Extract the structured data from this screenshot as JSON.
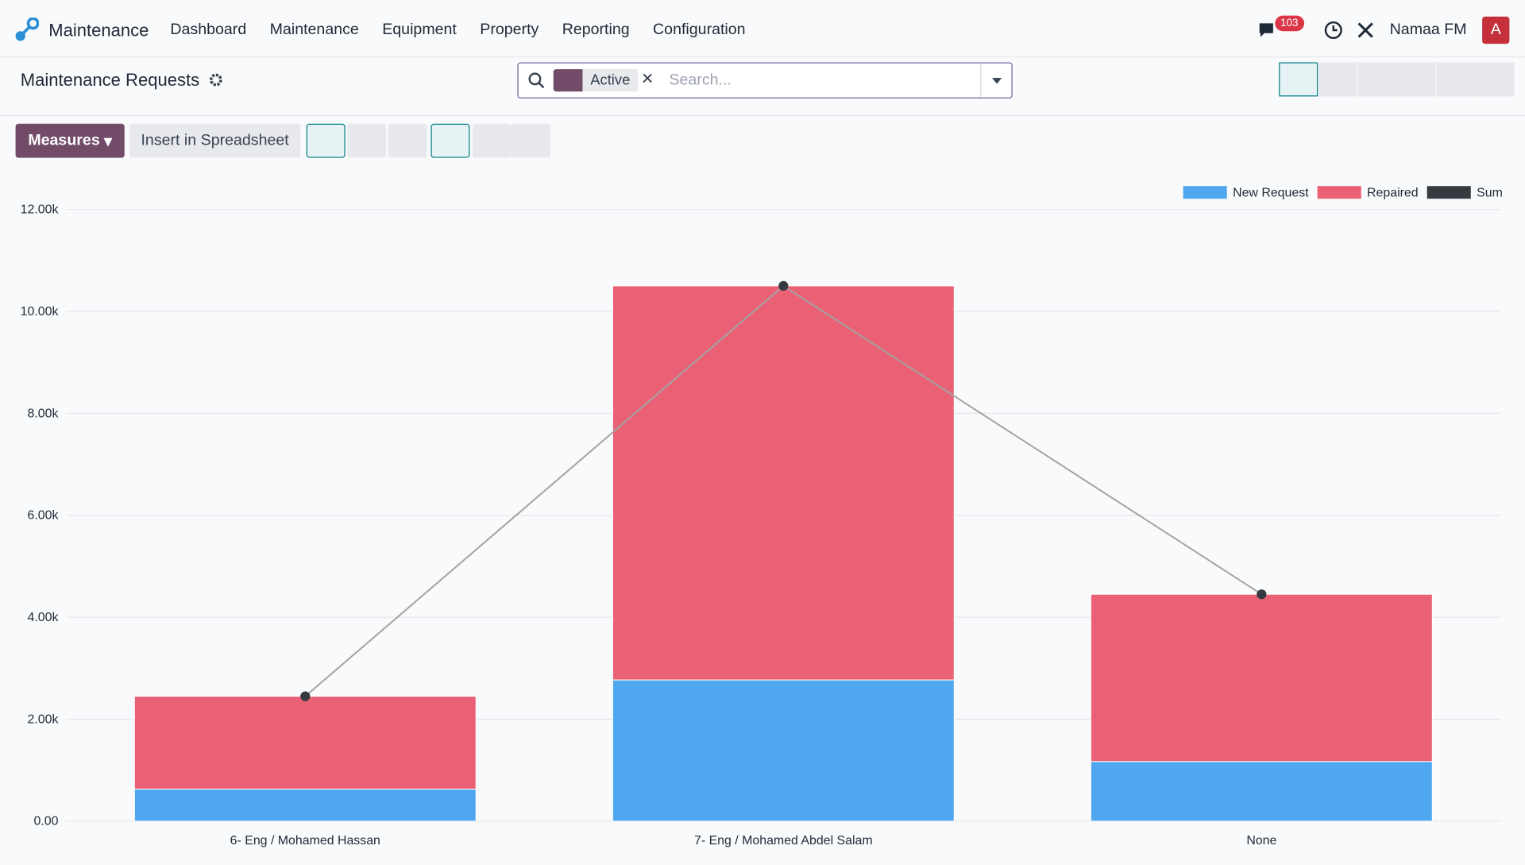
{
  "navbar": {
    "app": "Maintenance",
    "menus": [
      "Dashboard",
      "Maintenance",
      "Equipment",
      "Property",
      "Reporting",
      "Configuration"
    ],
    "badge": "103",
    "company": "Namaa FM",
    "avatar": "A"
  },
  "control_panel": {
    "breadcrumb": "Maintenance Requests",
    "facet": "Active",
    "search_placeholder": "Search...",
    "measures": "Measures",
    "insert": "Insert in Spreadsheet"
  },
  "chart_data": {
    "type": "bar",
    "stacked": true,
    "categories": [
      "6- Eng / Mohamed Hassan",
      "7- Eng / Mohamed Abdel Salam",
      "None"
    ],
    "series": [
      {
        "name": "New Request",
        "color": "#4ea7ef",
        "values": [
          630,
          2770,
          1170
        ]
      },
      {
        "name": "Repaired",
        "color": "#ea6175",
        "values": [
          1820,
          7730,
          3280
        ]
      },
      {
        "name": "Sum",
        "color": "#343a40",
        "type": "line",
        "values": [
          2450,
          10500,
          4450
        ]
      }
    ],
    "ylim": [
      0,
      12000
    ],
    "yticks": [
      {
        "value": 0,
        "label": "0.00"
      },
      {
        "value": 2000,
        "label": "2.00k"
      },
      {
        "value": 4000,
        "label": "4.00k"
      },
      {
        "value": 6000,
        "label": "6.00k"
      },
      {
        "value": 8000,
        "label": "8.00k"
      },
      {
        "value": 10000,
        "label": "10.00k"
      },
      {
        "value": 12000,
        "label": "12.00k"
      }
    ],
    "grid": true,
    "legend": "top-right"
  }
}
